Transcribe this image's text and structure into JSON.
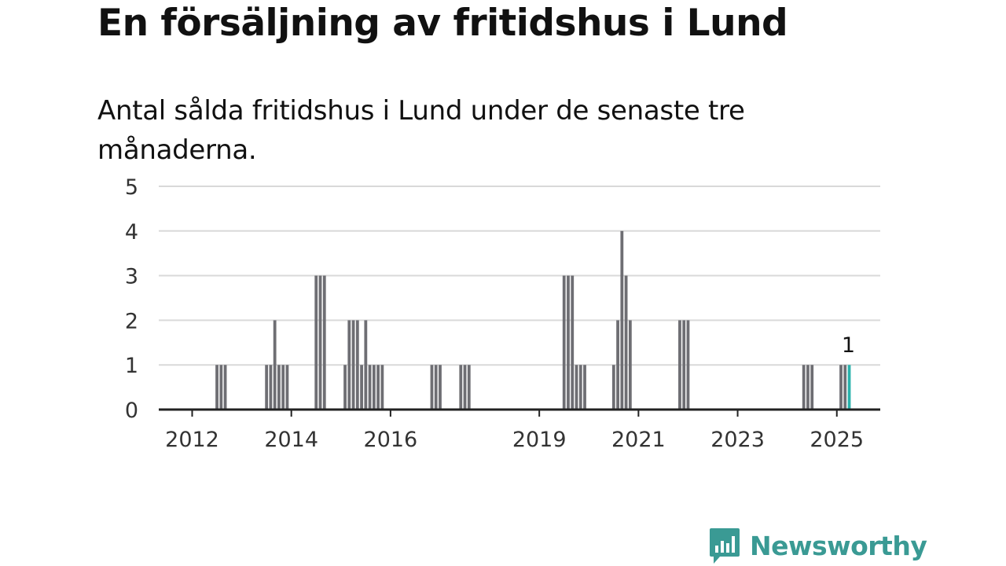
{
  "header": {
    "title": "En försäljning av fritidshus i Lund",
    "subtitle": "Antal sålda fritidshus i Lund under de senaste tre månaderna."
  },
  "brand": {
    "name": "Newsworthy",
    "icon": "bar-chart-speech-bubble-icon"
  },
  "colors": {
    "bar": "#6e6e73",
    "highlight": "#2bb3ad",
    "grid": "#d9d9d9",
    "axis": "#222222",
    "brand": "#3a9a94"
  },
  "chart_data": {
    "type": "bar",
    "title": "En försäljning av fritidshus i Lund",
    "subtitle": "Antal sålda fritidshus i Lund under de senaste tre månaderna.",
    "xlabel": "",
    "ylabel": "",
    "ylim": [
      0,
      5
    ],
    "yticks": [
      0,
      1,
      2,
      3,
      4,
      5
    ],
    "xticks": [
      "2012",
      "2014",
      "2016",
      "2019",
      "2021",
      "2023",
      "2025"
    ],
    "grid": true,
    "legend": "none",
    "x": [
      "2012-07",
      "2012-08",
      "2012-09",
      "2013-07",
      "2013-08",
      "2013-09",
      "2013-10",
      "2013-11",
      "2013-12",
      "2014-07",
      "2014-08",
      "2014-09",
      "2015-02",
      "2015-03",
      "2015-04",
      "2015-05",
      "2015-06",
      "2015-07",
      "2015-08",
      "2015-09",
      "2015-10",
      "2015-11",
      "2016-11",
      "2016-12",
      "2017-01",
      "2017-06",
      "2017-07",
      "2017-08",
      "2019-07",
      "2019-08",
      "2019-09",
      "2019-10",
      "2019-11",
      "2019-12",
      "2020-07",
      "2020-08",
      "2020-09",
      "2020-10",
      "2020-11",
      "2021-11",
      "2021-12",
      "2022-01",
      "2024-05",
      "2024-06",
      "2024-07",
      "2025-02",
      "2025-03",
      "2025-04"
    ],
    "values": [
      1,
      1,
      1,
      1,
      1,
      2,
      1,
      1,
      1,
      3,
      3,
      3,
      1,
      2,
      2,
      2,
      1,
      2,
      1,
      1,
      1,
      1,
      1,
      1,
      1,
      1,
      1,
      1,
      3,
      3,
      3,
      1,
      1,
      1,
      1,
      2,
      4,
      3,
      2,
      2,
      2,
      2,
      1,
      1,
      1,
      1,
      1,
      1
    ],
    "highlight": {
      "x": "2025-04",
      "value": 1,
      "label": "1"
    }
  }
}
